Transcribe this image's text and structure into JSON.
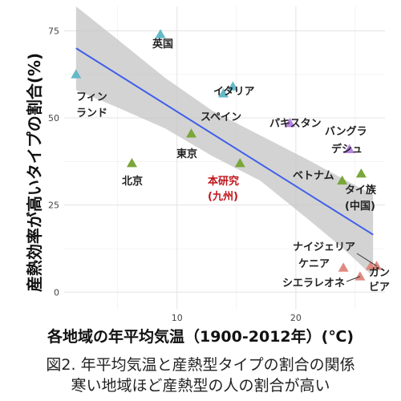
{
  "chart_data": {
    "type": "scatter",
    "title": "",
    "xlabel": "各地域の年平均気温（1900-2012年）(℃)",
    "ylabel": "産熱効率が高いタイプの割合(%)",
    "xlim": [
      0.5,
      27.5
    ],
    "ylim": [
      -5,
      82
    ],
    "x_ticks": [
      10,
      20
    ],
    "y_ticks": [
      0,
      25,
      50,
      75
    ],
    "grid": true,
    "legend": "none",
    "points": [
      {
        "label": [
          "フィン",
          "ランド"
        ],
        "x": 1.5,
        "y": 62.5,
        "color": "#64b9c7",
        "label_color": "#222222"
      },
      {
        "label": [
          "英国"
        ],
        "x": 8.6,
        "y": 74,
        "color": "#64b9c7",
        "label_color": "#222222"
      },
      {
        "label": [
          "イタリア"
        ],
        "x": 14.7,
        "y": 59,
        "color": "#64b9c7",
        "label_color": "#222222"
      },
      {
        "label": [
          "スペイン"
        ],
        "x": 13.9,
        "y": 57,
        "color": "#64b9c7",
        "label_color": "#222222"
      },
      {
        "label": [
          "北京"
        ],
        "x": 6.2,
        "y": 37,
        "color": "#7aa63a",
        "label_color": "#222222"
      },
      {
        "label": [
          "東京"
        ],
        "x": 11.2,
        "y": 45.5,
        "color": "#7aa63a",
        "label_color": "#222222"
      },
      {
        "label": [
          "本研究",
          "(九州)"
        ],
        "x": 15.3,
        "y": 37,
        "color": "#7aa63a",
        "label_color": "#c0151b"
      },
      {
        "label": [
          "パキスタン"
        ],
        "x": 19.5,
        "y": 48.5,
        "color": "#b785e6",
        "label_color": "#222222"
      },
      {
        "label": [
          "バングラ",
          "デシュ"
        ],
        "x": 24.5,
        "y": 41,
        "color": "#b785e6",
        "label_color": "#222222"
      },
      {
        "label": [
          "ベトナム"
        ],
        "x": 23.9,
        "y": 32,
        "color": "#7aa63a",
        "label_color": "#222222"
      },
      {
        "label": [
          "タイ族",
          "(中国)"
        ],
        "x": 25.5,
        "y": 34,
        "color": "#7aa63a",
        "label_color": "#222222"
      },
      {
        "label": [
          "ナイジェリア"
        ],
        "x": 26.8,
        "y": 7.5,
        "color": "#df8a80",
        "label_color": "#222222"
      },
      {
        "label": [
          "ケニア"
        ],
        "x": 24.0,
        "y": 7,
        "color": "#df8a80",
        "label_color": "#222222"
      },
      {
        "label": [
          "シエラレオネ"
        ],
        "x": 25.4,
        "y": 4.5,
        "color": "#df8a80",
        "label_color": "#222222"
      },
      {
        "label": [
          "ガン",
          "ビア"
        ],
        "x": 26.3,
        "y": 7.5,
        "color": "#df8a80",
        "label_color": "#222222"
      }
    ],
    "regression_line": {
      "color": "#3f5fe8",
      "x": [
        1.5,
        26.5
      ],
      "y": [
        70,
        16.5
      ]
    },
    "confidence_band": {
      "color": "#c4c4c4",
      "x": [
        1.5,
        5,
        9,
        13,
        17,
        21,
        24,
        26.5
      ],
      "upper": [
        82,
        72.5,
        61.5,
        52,
        45,
        38,
        32.5,
        28
      ],
      "lower": [
        58,
        53,
        47,
        39,
        32,
        21,
        12.5,
        4.5
      ]
    }
  },
  "caption": {
    "line1": "図2. 年平均気温と産熱型タイプの割合の関係",
    "line2": "寒い地域ほど産熱型の人の割合が高い"
  }
}
